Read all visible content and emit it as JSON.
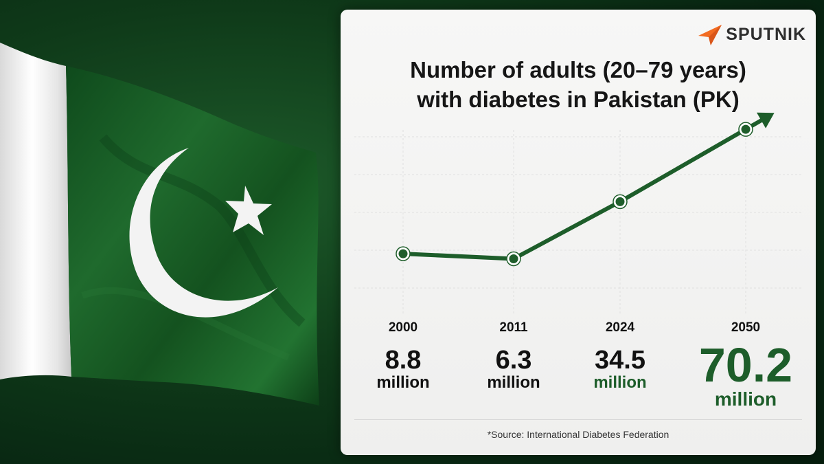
{
  "brand": {
    "name": "SPUTNIK",
    "accent_color": "#f26b21",
    "icon": "sputnik-logo-icon"
  },
  "chart_data": {
    "type": "line",
    "title": "Number of adults (20–79 years)\nwith diabetes in Pakistan (PK)",
    "x": [
      "2000",
      "2011",
      "2024",
      "2050"
    ],
    "series": [
      {
        "values": [
          8.8,
          6.3,
          34.5,
          70.2
        ],
        "color": "#1d5d2a"
      }
    ],
    "value_labels": [
      "8.8",
      "6.3",
      "34.5",
      "70.2"
    ],
    "unit_label": "million",
    "trend_arrow": true,
    "grid": true,
    "ylim": [
      -20,
      75
    ]
  },
  "source": "*Source: International Diabetes Federation",
  "background": {
    "flag": "pakistan-flag",
    "colors": {
      "green": "#1f6a2d",
      "white": "#f2f2f2"
    }
  }
}
